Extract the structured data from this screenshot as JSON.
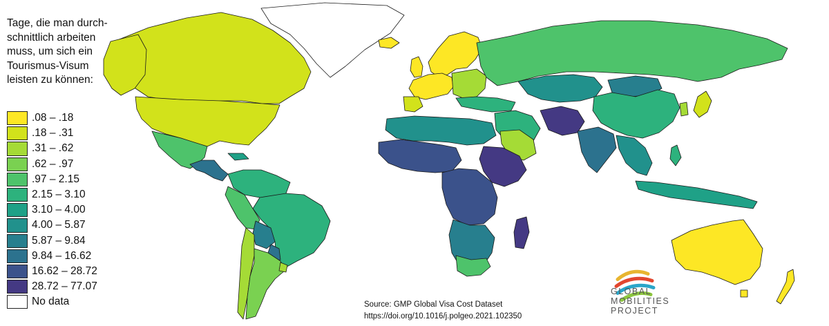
{
  "legend": {
    "title_lines": [
      "Tage, die man durch-",
      "schnittlich arbeiten",
      "muss, um sich ein",
      "Tourismus-Visum",
      "leisten zu können:"
    ],
    "items": [
      {
        "label": ".08 – .18",
        "color": "#fde725"
      },
      {
        "label": ".18 – .31",
        "color": "#d2e21b"
      },
      {
        "label": ".31 – .62",
        "color": "#a5db36"
      },
      {
        "label": ".62 – .97",
        "color": "#7ad151"
      },
      {
        "label": ".97 – 2.15",
        "color": "#4ec36b"
      },
      {
        "label": "2.15 – 3.10",
        "color": "#2db27d"
      },
      {
        "label": "3.10 – 4.00",
        "color": "#1fa187"
      },
      {
        "label": "4.00 – 5.87",
        "color": "#21918c"
      },
      {
        "label": "5.87 – 9.84",
        "color": "#277f8e"
      },
      {
        "label": "9.84 – 16.62",
        "color": "#2c728e"
      },
      {
        "label": "16.62 – 28.72",
        "color": "#3b528b"
      },
      {
        "label": "28.72 – 77.07",
        "color": "#443983"
      },
      {
        "label": "No data",
        "color": "#ffffff"
      }
    ]
  },
  "source": {
    "line1": "Source: GMP Global Visa Cost Dataset",
    "line2": "https://doi.org/10.1016/j.polgeo.2021.102350"
  },
  "logo": {
    "lines": [
      "GLOBAL",
      "MOBILITIES",
      "PROJECT"
    ],
    "colors": [
      "#e8b530",
      "#e2472f",
      "#2aa6c9",
      "#8cc63e"
    ]
  }
}
